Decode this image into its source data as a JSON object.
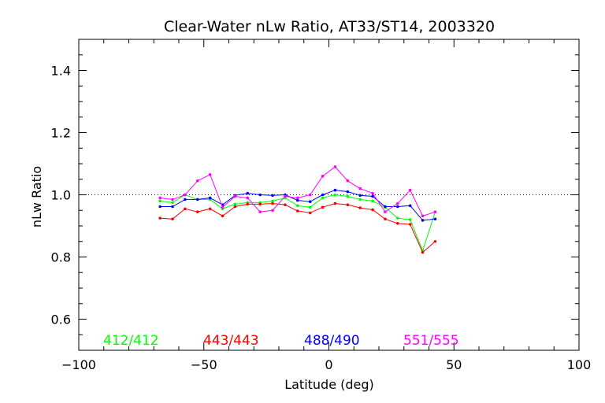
{
  "chart_data": {
    "type": "line",
    "title": "Clear-Water nLw Ratio, AT33/ST14, 2003320",
    "xlabel": "Latitude (deg)",
    "ylabel": "nLw Ratio",
    "xlim": [
      -100,
      100
    ],
    "ylim": [
      0.5,
      1.5
    ],
    "xticks": [
      -100,
      -50,
      0,
      50,
      100
    ],
    "xtick_labels": [
      "−100",
      "−50",
      "0",
      "50",
      "100"
    ],
    "yticks": [
      0.6,
      0.8,
      1.0,
      1.2,
      1.4
    ],
    "ytick_labels": [
      "0.6",
      "0.8",
      "1.0",
      "1.2",
      "1.4"
    ],
    "reference_line": 1.0,
    "grid": false,
    "legend_placement": "bottom-inside",
    "x": [
      -67.5,
      -62.5,
      -57.5,
      -52.5,
      -47.5,
      -42.5,
      -37.5,
      -32.5,
      -27.5,
      -22.5,
      -17.5,
      -12.5,
      -7.5,
      -2.5,
      2.5,
      7.5,
      12.5,
      17.5,
      22.5,
      27.5,
      32.5,
      37.5,
      42.5
    ],
    "series": [
      {
        "name": "412/412",
        "color": "#00ff00",
        "values": [
          0.98,
          0.975,
          1.0,
          0.985,
          0.985,
          0.955,
          0.97,
          0.975,
          0.975,
          0.98,
          0.99,
          0.965,
          0.96,
          0.99,
          1.0,
          0.995,
          0.985,
          0.98,
          0.96,
          0.925,
          0.92,
          0.82,
          0.945
        ]
      },
      {
        "name": "443/443",
        "color": "#ff0000",
        "values": [
          0.925,
          0.922,
          0.955,
          0.945,
          0.955,
          0.932,
          0.962,
          0.97,
          0.97,
          0.972,
          0.968,
          0.948,
          0.942,
          0.96,
          0.972,
          0.968,
          0.958,
          0.952,
          0.922,
          0.908,
          0.905,
          0.815,
          0.85
        ]
      },
      {
        "name": "488/490",
        "color": "#0000ff",
        "values": [
          0.962,
          0.962,
          0.985,
          0.985,
          0.99,
          0.968,
          0.998,
          1.005,
          1.0,
          0.998,
          1.0,
          0.982,
          0.978,
          1.0,
          1.015,
          1.01,
          0.998,
          0.995,
          0.962,
          0.962,
          0.965,
          0.918,
          0.922
        ]
      },
      {
        "name": "551/555",
        "color": "#ff00ff",
        "values": [
          0.99,
          0.985,
          1.0,
          1.045,
          1.065,
          0.96,
          0.995,
          0.99,
          0.945,
          0.95,
          0.995,
          0.99,
          1.0,
          1.06,
          1.09,
          1.045,
          1.02,
          1.005,
          0.945,
          0.972,
          1.015,
          0.932,
          0.945
        ]
      }
    ]
  }
}
